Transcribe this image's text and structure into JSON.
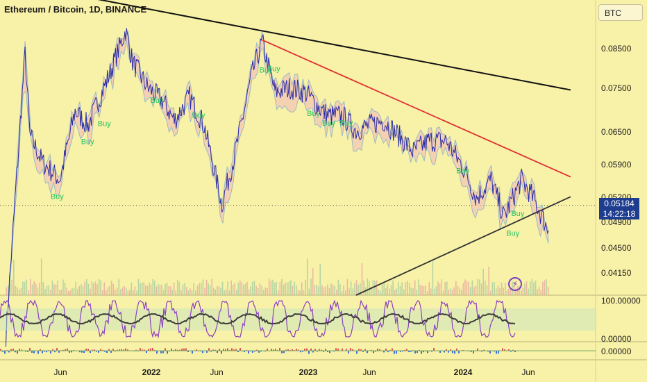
{
  "title": "Ethereum / Bitcoin, 1D, BINANCE",
  "currency_button": "BTC",
  "last_price": {
    "value": "0.05184",
    "countdown": "14:22:18"
  },
  "colors": {
    "background": "#f8f1a8",
    "price_line": "#2a2aa6",
    "downtrend_upper": "#111111",
    "downtrend_lower": "#e03131",
    "uptrend_support": "#333333",
    "buy_label": "#22c55e",
    "cloud_blue": "#4f8fd8",
    "cloud_pink": "#f2b8b8",
    "oscillator_purple": "#8a3fbf",
    "oscillator_dark": "#3b3b3b"
  },
  "icons": {
    "flash": "lightning-icon"
  },
  "chart_data": [
    {
      "type": "line",
      "title": "Ethereum / Bitcoin, 1D, BINANCE",
      "xlabel": "",
      "ylabel": "",
      "x_ticks": [
        "Jun",
        "2022",
        "Jun",
        "2023",
        "Jun",
        "2024",
        "Jun"
      ],
      "y_ticks": [
        "0.08500",
        "0.07500",
        "0.06500",
        "0.05900",
        "0.05200",
        "0.04900",
        "0.04500",
        "0.04150"
      ],
      "y_scale": "log",
      "ylim": [
        0.0395,
        0.0965
      ],
      "series": [
        {
          "x": [
            "2021-04-01",
            "2021-05-10",
            "2021-05-20",
            "2021-06-15",
            "2021-07-20",
            "2021-08-20",
            "2021-09-15",
            "2021-10-10",
            "2021-11-01",
            "2021-12-01",
            "2021-12-15",
            "2022-01-15",
            "2022-02-15",
            "2022-03-10",
            "2022-04-10",
            "2022-05-10",
            "2022-06-15",
            "2022-07-10",
            "2022-08-15",
            "2022-09-05",
            "2022-10-01",
            "2022-11-01",
            "2022-12-01",
            "2023-01-15",
            "2023-02-15",
            "2023-03-15",
            "2023-04-10",
            "2023-05-10",
            "2023-06-10",
            "2023-07-10",
            "2023-08-10",
            "2023-09-15",
            "2023-10-20",
            "2023-11-15",
            "2023-12-15",
            "2024-01-10",
            "2024-02-15",
            "2024-03-10",
            "2024-04-10"
          ],
          "values": [
            0.035,
            0.082,
            0.064,
            0.059,
            0.056,
            0.069,
            0.066,
            0.072,
            0.078,
            0.088,
            0.08,
            0.074,
            0.071,
            0.067,
            0.072,
            0.066,
            0.052,
            0.06,
            0.077,
            0.085,
            0.073,
            0.074,
            0.073,
            0.068,
            0.068,
            0.065,
            0.066,
            0.067,
            0.064,
            0.061,
            0.063,
            0.063,
            0.058,
            0.053,
            0.056,
            0.05,
            0.056,
            0.053,
            0.048
          ]
        }
      ],
      "trendlines": [
        {
          "name": "",
          "from": [
            "2021-04-01",
            0.102
          ],
          "to": [
            "2024-05-25",
            0.0735
          ]
        },
        {
          "name": "",
          "from": [
            "2022-09-05",
            0.0855
          ],
          "to": [
            "2024-05-25",
            0.0565
          ]
        },
        {
          "name": "",
          "from": [
            "2023-03-15",
            0.0395
          ],
          "to": [
            "2024-05-25",
            0.0532
          ]
        }
      ],
      "annotations": [
        "Buy",
        "Buy",
        "Buy",
        "Buy",
        "Buy",
        "Buy",
        "Buy",
        "Buy",
        "Buy",
        "Buy",
        "Buy",
        "Buy",
        "Buy"
      ],
      "last_value": 0.05184,
      "grid": false
    },
    {
      "type": "line",
      "y_ticks": [
        "100.00000",
        "0.00000"
      ],
      "ylim": [
        0,
        100
      ]
    },
    {
      "type": "line",
      "y_ticks": [
        "0.00000"
      ]
    }
  ]
}
